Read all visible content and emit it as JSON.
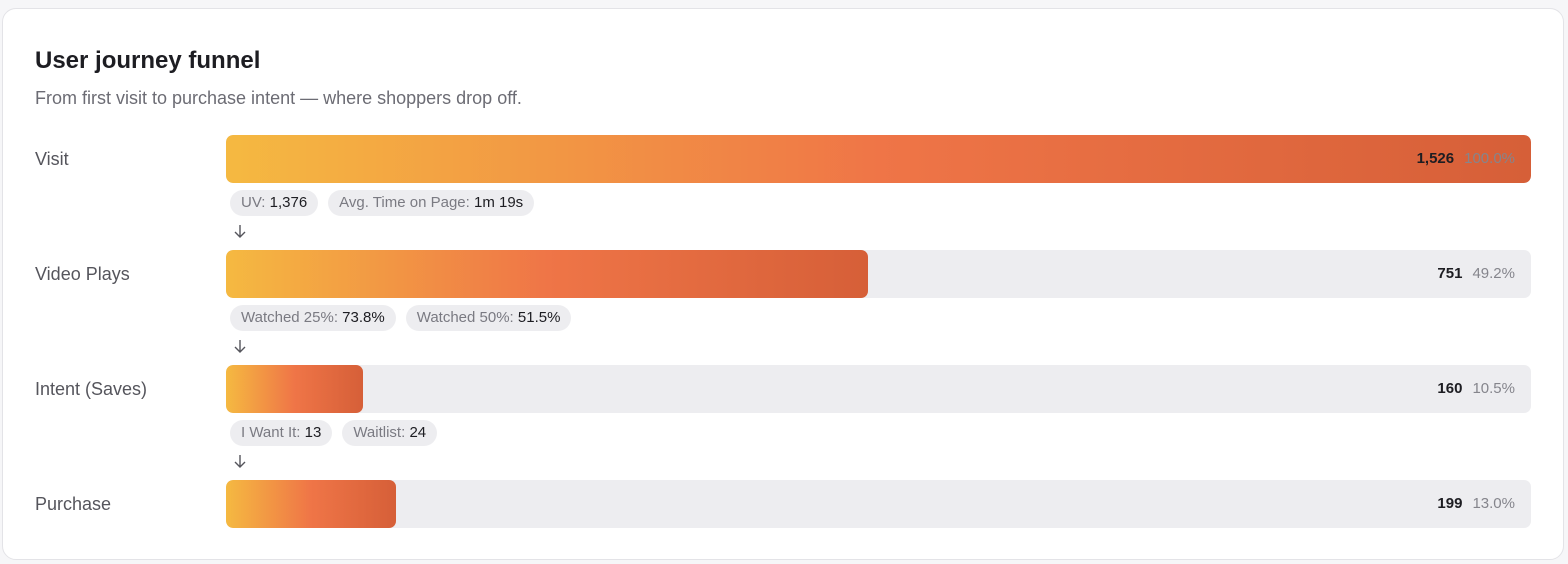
{
  "chart_data": {
    "type": "funnel",
    "title": "User journey funnel",
    "subtitle": "From first visit to purchase intent — where shoppers drop off.",
    "categories": [
      "Visit",
      "Video Plays",
      "Intent (Saves)",
      "Purchase"
    ],
    "values": [
      1526,
      751,
      160,
      199
    ],
    "value_labels": [
      "1,526",
      "751",
      "160",
      "199"
    ],
    "percents": [
      100,
      49.2,
      10.5,
      13
    ],
    "percent_labels": [
      "100.0%",
      "49.2%",
      "10.5%",
      "13.0%"
    ],
    "colors": [
      "#f5b941",
      "#ef7547",
      "#d65f38"
    ],
    "details": [
      [
        {
          "label": "UV:",
          "value": "1,376"
        },
        {
          "label": "Avg. Time on Page:",
          "value": "1m 19s"
        }
      ],
      [
        {
          "label": "Watched 25%:",
          "value": "73.8%"
        },
        {
          "label": "Watched 50%:",
          "value": "51.5%"
        }
      ],
      [
        {
          "label": "I Want It:",
          "value": "13"
        },
        {
          "label": "Waitlist:",
          "value": "24"
        }
      ]
    ]
  }
}
